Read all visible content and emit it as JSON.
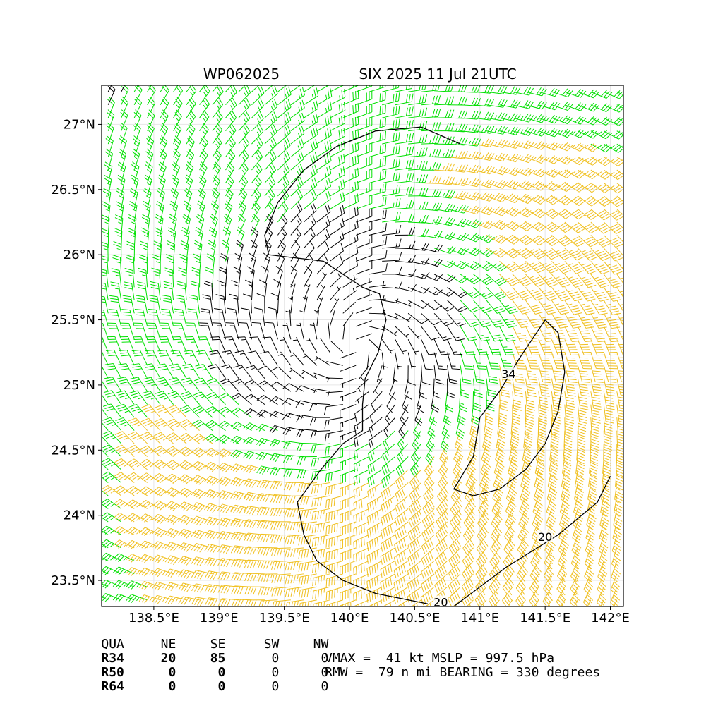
{
  "title_left": "WP062025",
  "title_right": "SIX 2025 11 Jul 21UTC",
  "chart_data": {
    "type": "wind_barb_map",
    "xlim": [
      138.1,
      142.1
    ],
    "ylim": [
      23.3,
      27.3
    ],
    "xticks": [
      138.5,
      139.0,
      139.5,
      140.0,
      140.5,
      141.0,
      141.5,
      142.0
    ],
    "xtick_labels": [
      "138.5°E",
      "139°E",
      "139.5°E",
      "140°E",
      "140.5°E",
      "141°E",
      "141.5°E",
      "142°E"
    ],
    "yticks": [
      23.5,
      24.0,
      24.5,
      25.0,
      25.5,
      26.0,
      26.5,
      27.0
    ],
    "ytick_labels": [
      "23.5°N",
      "24°N",
      "24.5°N",
      "25°N",
      "25.5°N",
      "26°N",
      "26.5°N",
      "27°N"
    ],
    "grid": true,
    "center": {
      "lon": 140.05,
      "lat": 25.3
    },
    "wind_barb_colors": {
      "below_20kt": "#000000",
      "20_to_34kt": "#00e000",
      "34kt_plus": "#f0c020"
    },
    "contours": [
      {
        "level": 20,
        "label": "20",
        "label_positions": [
          [
            140.7,
            23.33
          ],
          [
            141.5,
            23.83
          ]
        ],
        "path": [
          [
            140.85,
            26.85
          ],
          [
            140.55,
            26.98
          ],
          [
            140.2,
            26.95
          ],
          [
            139.9,
            26.83
          ],
          [
            139.65,
            26.65
          ],
          [
            139.45,
            26.4
          ],
          [
            139.35,
            26.15
          ],
          [
            139.38,
            26.0
          ],
          [
            139.55,
            25.98
          ],
          [
            139.8,
            25.95
          ],
          [
            139.95,
            25.85
          ],
          [
            140.1,
            25.75
          ],
          [
            140.23,
            25.7
          ],
          [
            140.28,
            25.5
          ],
          [
            140.22,
            25.25
          ],
          [
            140.12,
            25.05
          ],
          [
            140.1,
            24.85
          ],
          [
            140.1,
            24.65
          ],
          [
            139.95,
            24.55
          ],
          [
            139.78,
            24.35
          ],
          [
            139.6,
            24.1
          ],
          [
            139.65,
            23.85
          ],
          [
            139.75,
            23.65
          ],
          [
            139.95,
            23.5
          ],
          [
            140.2,
            23.4
          ],
          [
            140.6,
            23.32
          ]
        ]
      },
      {
        "level": 20,
        "label": "",
        "label_positions": [],
        "path": [
          [
            140.8,
            23.3
          ],
          [
            141.2,
            23.6
          ],
          [
            141.6,
            23.85
          ],
          [
            141.9,
            24.1
          ],
          [
            142.0,
            24.3
          ]
        ]
      },
      {
        "level": 34,
        "label": "34",
        "label_positions": [
          [
            141.22,
            25.08
          ]
        ],
        "path": [
          [
            141.5,
            25.5
          ],
          [
            141.6,
            25.4
          ],
          [
            141.65,
            25.1
          ],
          [
            141.6,
            24.8
          ],
          [
            141.5,
            24.55
          ],
          [
            141.35,
            24.35
          ],
          [
            141.15,
            24.2
          ],
          [
            140.95,
            24.15
          ],
          [
            140.8,
            24.2
          ],
          [
            140.95,
            24.45
          ],
          [
            141.0,
            24.75
          ],
          [
            141.15,
            24.95
          ],
          [
            141.3,
            25.2
          ],
          [
            141.5,
            25.5
          ]
        ]
      }
    ],
    "quadrant_table": {
      "headers": [
        "QUA",
        "NE",
        "SE",
        "SW",
        "NW"
      ],
      "rows": [
        {
          "name": "R34",
          "values": [
            "20",
            "85",
            "0",
            "0"
          ]
        },
        {
          "name": "R50",
          "values": [
            "0",
            "0",
            "0",
            "0"
          ]
        },
        {
          "name": "R64",
          "values": [
            "0",
            "0",
            "0",
            "0"
          ]
        }
      ]
    },
    "vmax_kt": 41,
    "mslp_hpa": 997.5,
    "rmw_nmi": 79,
    "bearing_deg": 330
  },
  "summary": {
    "line1": "VMAX =  41 kt MSLP = 997.5 hPa",
    "line2": "RMW =  79 n mi BEARING = 330 degrees"
  }
}
